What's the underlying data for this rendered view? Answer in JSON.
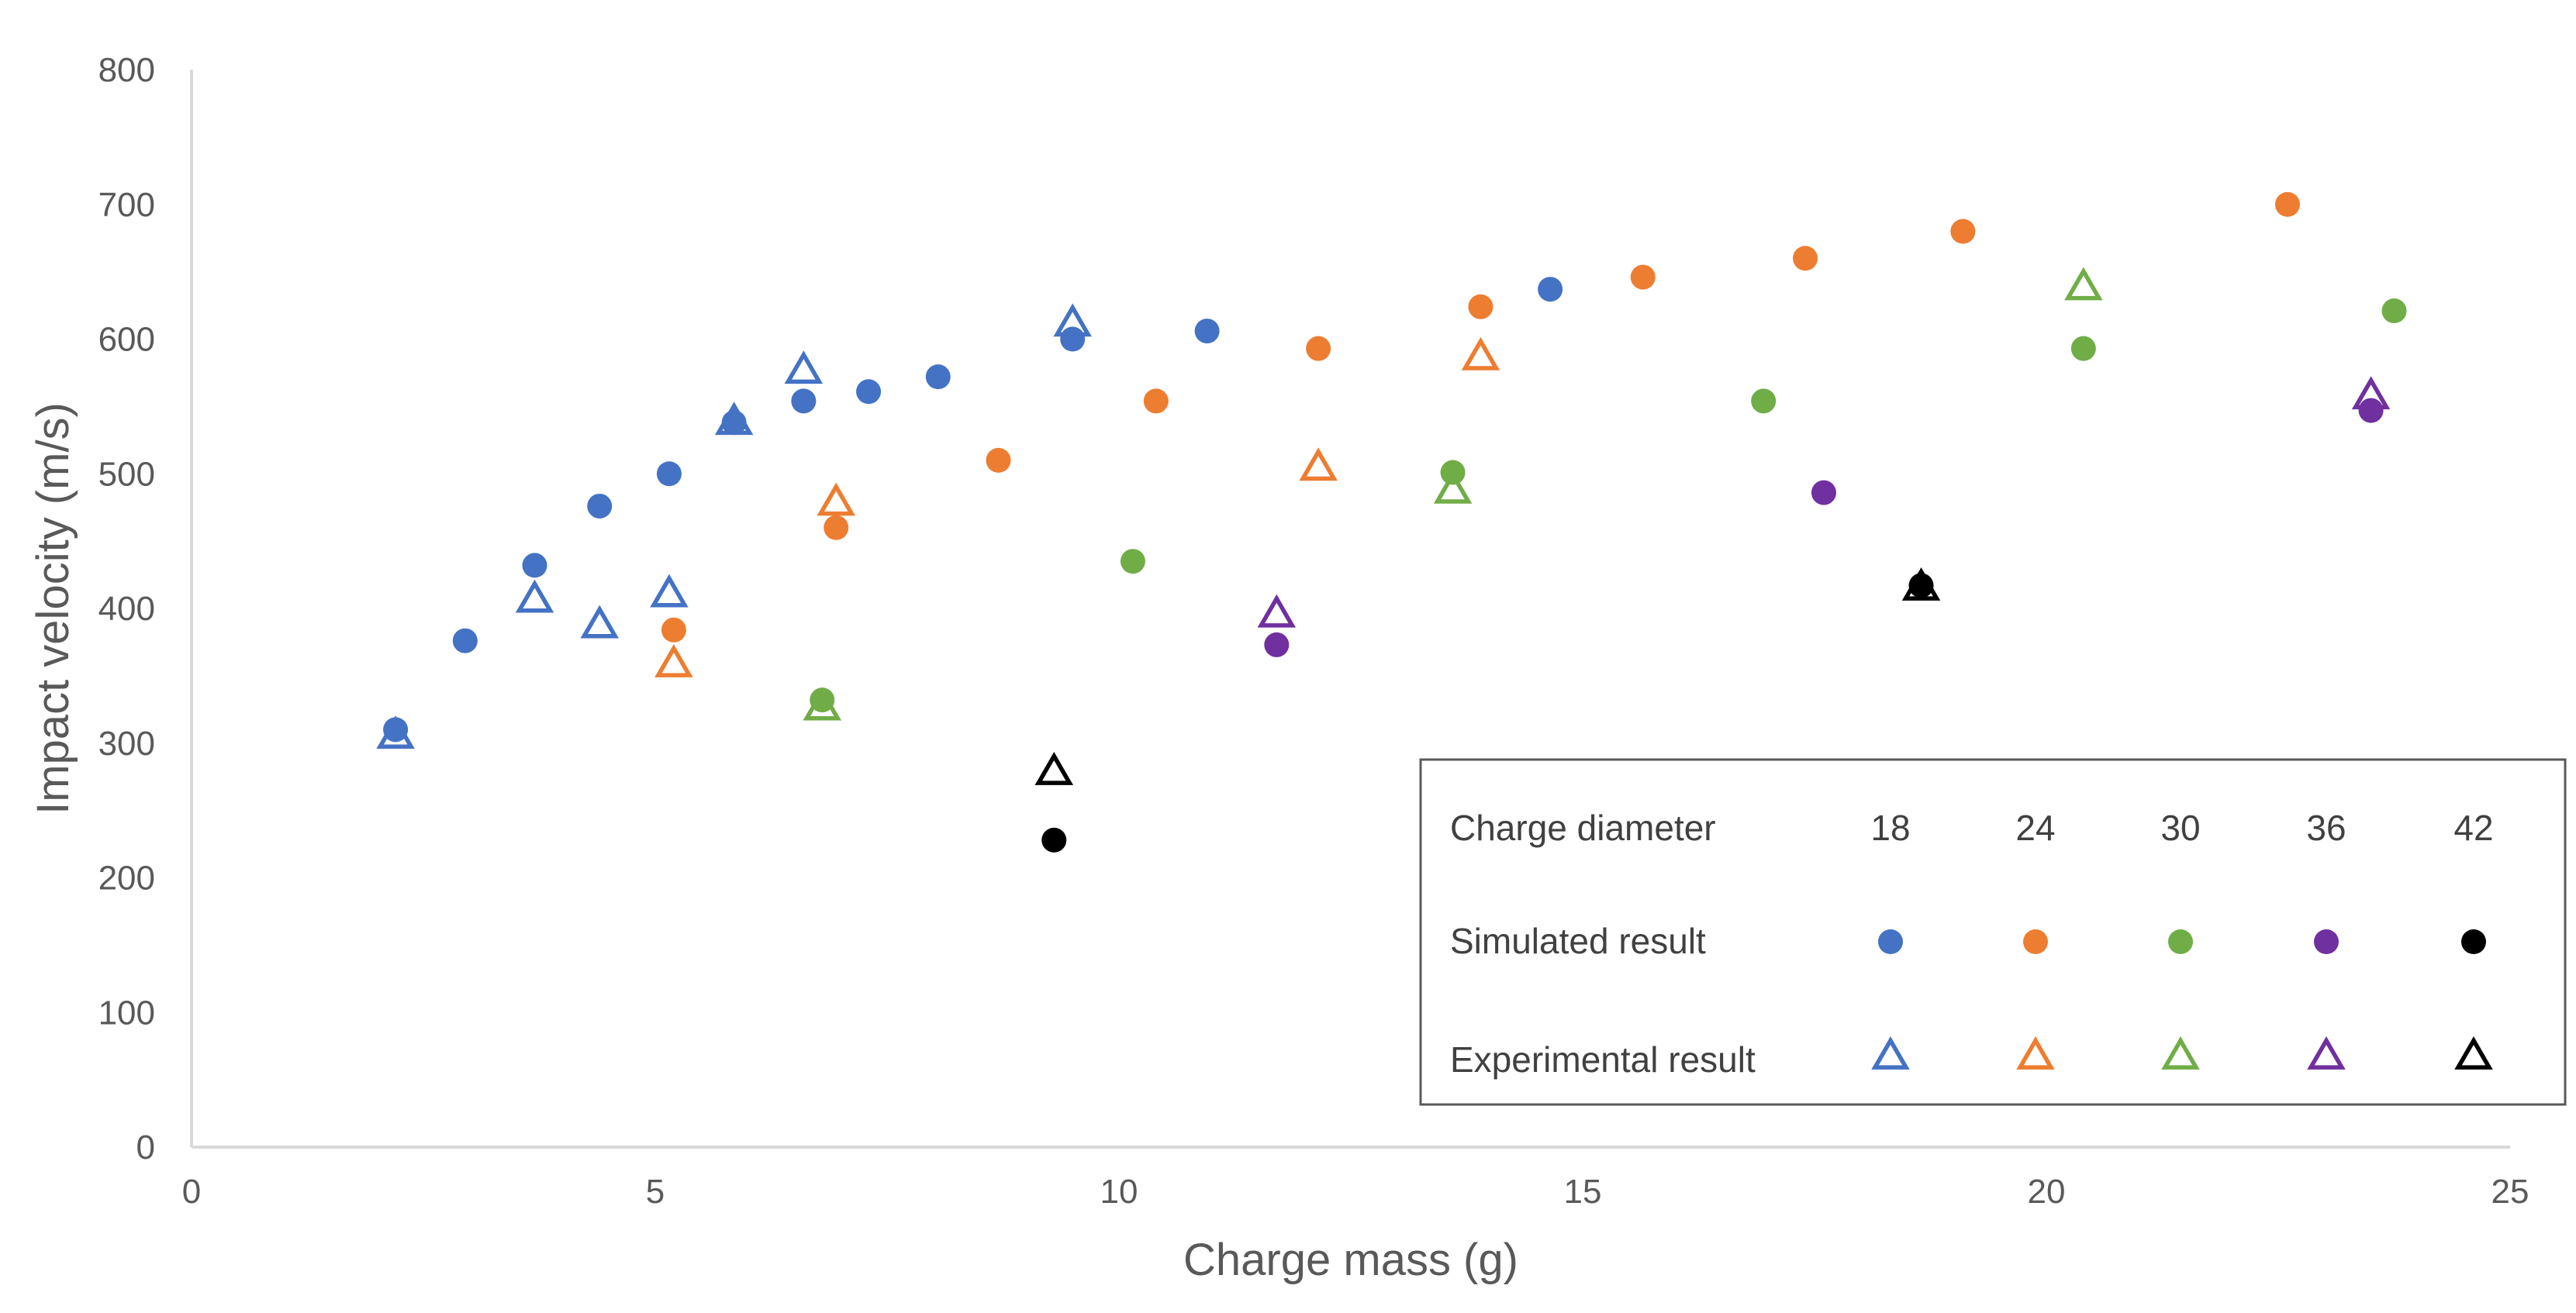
{
  "chart_data": {
    "type": "scatter",
    "title": "",
    "xlabel": "Charge mass (g)",
    "ylabel": "Impact velocity  (m/s)",
    "xlim": [
      0,
      25
    ],
    "ylim": [
      0,
      800
    ],
    "xticks": [
      0,
      5,
      10,
      15,
      20,
      25
    ],
    "yticks": [
      0,
      100,
      200,
      300,
      400,
      500,
      600,
      700,
      800
    ],
    "grid": false,
    "legend": {
      "placement": "bottom-right",
      "header_label": "Charge diameter",
      "row_labels": [
        "Simulated result",
        "Experimental result"
      ]
    },
    "series": [
      {
        "diameter": "18",
        "color": "#4472C4",
        "simulated": [
          [
            2.2,
            310
          ],
          [
            2.95,
            376
          ],
          [
            3.7,
            432
          ],
          [
            4.4,
            476
          ],
          [
            5.15,
            500
          ],
          [
            5.85,
            538
          ],
          [
            6.6,
            554
          ],
          [
            7.3,
            561
          ],
          [
            8.05,
            572
          ],
          [
            9.5,
            600
          ],
          [
            10.95,
            606
          ],
          [
            14.65,
            637
          ]
        ],
        "experimental": [
          [
            2.2,
            305
          ],
          [
            3.7,
            406
          ],
          [
            4.4,
            387
          ],
          [
            5.15,
            410
          ],
          [
            5.85,
            538
          ],
          [
            6.6,
            576
          ],
          [
            9.5,
            611
          ]
        ]
      },
      {
        "diameter": "24",
        "color": "#ED7D31",
        "simulated": [
          [
            5.2,
            384
          ],
          [
            6.95,
            460
          ],
          [
            8.7,
            510
          ],
          [
            10.4,
            554
          ],
          [
            12.15,
            593
          ],
          [
            13.9,
            624
          ],
          [
            15.65,
            646
          ],
          [
            17.4,
            660
          ],
          [
            19.1,
            680
          ],
          [
            22.6,
            700
          ]
        ],
        "experimental": [
          [
            5.2,
            358
          ],
          [
            6.95,
            478
          ],
          [
            12.15,
            504
          ],
          [
            13.9,
            586
          ]
        ]
      },
      {
        "diameter": "30",
        "color": "#70AD47",
        "simulated": [
          [
            6.8,
            332
          ],
          [
            10.15,
            435
          ],
          [
            13.6,
            501
          ],
          [
            16.95,
            554
          ],
          [
            20.4,
            593
          ],
          [
            23.75,
            621
          ]
        ],
        "experimental": [
          [
            6.8,
            326
          ],
          [
            13.6,
            487
          ],
          [
            20.4,
            638
          ]
        ]
      },
      {
        "diameter": "36",
        "color": "#7030A0",
        "simulated": [
          [
            11.7,
            373
          ],
          [
            17.6,
            486
          ],
          [
            23.5,
            547
          ]
        ],
        "experimental": [
          [
            11.7,
            395
          ],
          [
            23.5,
            557
          ]
        ]
      },
      {
        "diameter": "42",
        "color": "#000000",
        "simulated": [
          [
            9.3,
            228
          ],
          [
            18.65,
            417
          ]
        ],
        "experimental": [
          [
            9.3,
            278
          ],
          [
            18.65,
            415
          ]
        ]
      }
    ]
  }
}
